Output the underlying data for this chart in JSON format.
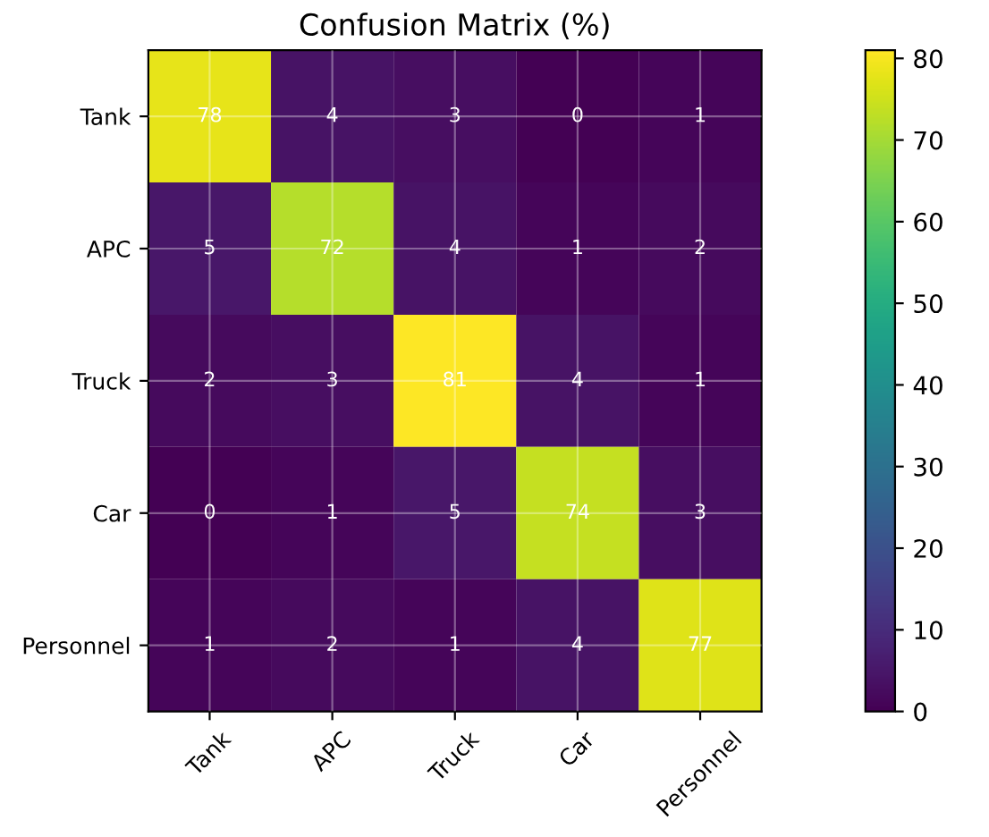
{
  "chart_data": {
    "type": "heatmap",
    "title": "Confusion Matrix (%)",
    "categories": [
      "Tank",
      "APC",
      "Truck",
      "Car",
      "Personnel"
    ],
    "y_categories": [
      "Tank",
      "APC",
      "Truck",
      "Car",
      "Personnel"
    ],
    "cells": [
      [
        78,
        4,
        3,
        0,
        1
      ],
      [
        5,
        72,
        4,
        1,
        2
      ],
      [
        2,
        3,
        81,
        4,
        1
      ],
      [
        0,
        1,
        5,
        74,
        3
      ],
      [
        1,
        2,
        1,
        4,
        77
      ]
    ],
    "data_labels": true,
    "clim": [
      0,
      81
    ],
    "cticks": [
      0,
      10,
      20,
      30,
      40,
      50,
      60,
      70,
      80
    ],
    "grid": true
  }
}
